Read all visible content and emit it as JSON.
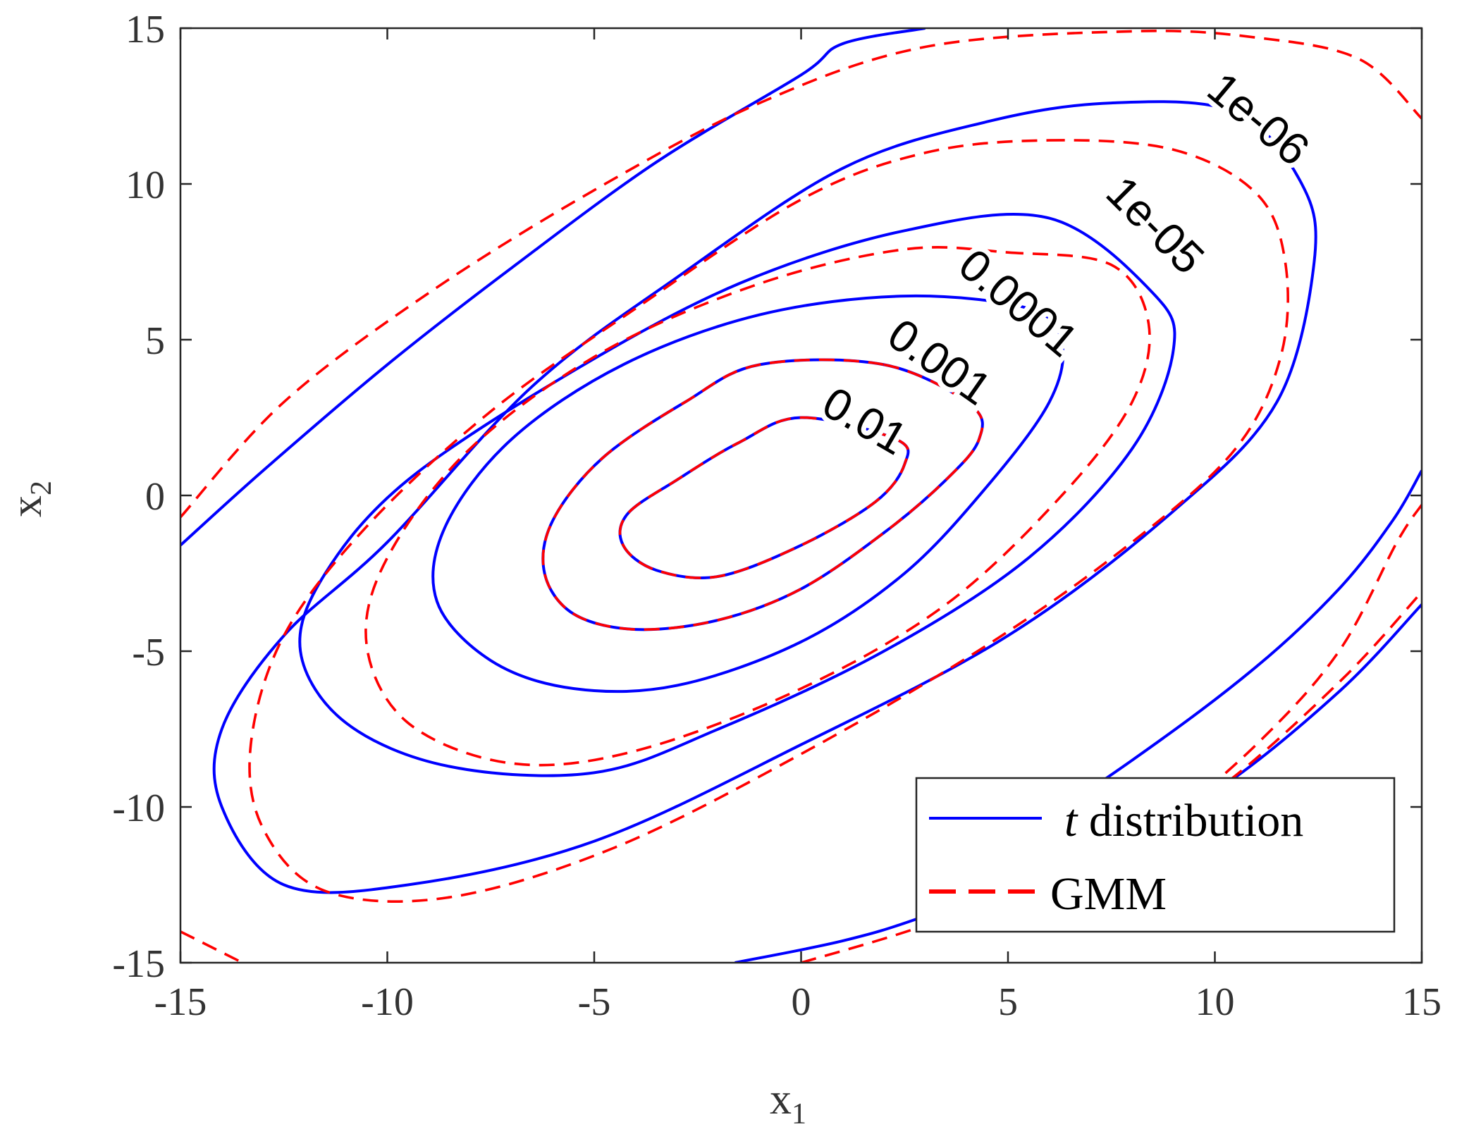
{
  "chart_data": {
    "type": "contour",
    "xlabel": "x",
    "xlabel_sub": "1",
    "ylabel": "x",
    "ylabel_sub": "2",
    "xlim": [
      -15,
      15
    ],
    "ylim": [
      -15,
      15
    ],
    "xticks": [
      "-15",
      "-10",
      "-5",
      "0",
      "5",
      "10",
      "15"
    ],
    "yticks": [
      "15",
      "10",
      "5",
      "0",
      "-5",
      "-10",
      "-15"
    ],
    "xtick_values": [
      -15,
      -10,
      -5,
      0,
      5,
      10,
      15
    ],
    "ytick_values": [
      15,
      10,
      5,
      0,
      -5,
      -10,
      -15
    ],
    "grid": false,
    "legend_position": "bottom-right",
    "levels": [
      "0.01",
      "0.001",
      "0.0001",
      "1e-05",
      "1e-06"
    ],
    "series": [
      {
        "name": "t distribution",
        "name_italic": "t",
        "name_rest": " distribution",
        "color": "#0000ff",
        "line_style": "solid",
        "contours": [
          {
            "level": "0.01",
            "points": [
              [
                0,
                2.5
              ],
              [
                2.3,
                1.8
              ],
              [
                2.5,
                1
              ],
              [
                1.8,
                -0.2
              ],
              [
                0,
                -1.6
              ],
              [
                -2,
                -2.6
              ],
              [
                -3.5,
                -2.4
              ],
              [
                -4.3,
                -1.6
              ],
              [
                -4.2,
                -0.6
              ],
              [
                -3,
                0.5
              ],
              [
                -1.5,
                1.7
              ],
              [
                0,
                2.5
              ]
            ]
          },
          {
            "level": "0.001",
            "points": [
              [
                2,
                4.2
              ],
              [
                4.1,
                2.9
              ],
              [
                4.3,
                1.8
              ],
              [
                3.5,
                0.5
              ],
              [
                2,
                -1.2
              ],
              [
                0,
                -3
              ],
              [
                -2,
                -4
              ],
              [
                -4,
                -4.3
              ],
              [
                -5.5,
                -3.8
              ],
              [
                -6.2,
                -2.5
              ],
              [
                -6,
                -0.8
              ],
              [
                -4.8,
                1.2
              ],
              [
                -2.8,
                3
              ],
              [
                -1,
                4.2
              ],
              [
                2,
                4.2
              ]
            ]
          },
          {
            "level": "0.0001",
            "points": [
              [
                5.5,
                6
              ],
              [
                6.3,
                4.9
              ],
              [
                6,
                3
              ],
              [
                4.5,
                0.3
              ],
              [
                2.5,
                -2.5
              ],
              [
                0,
                -4.7
              ],
              [
                -3,
                -6.1
              ],
              [
                -5.5,
                -6.2
              ],
              [
                -7.5,
                -5.3
              ],
              [
                -8.8,
                -3.4
              ],
              [
                -8.6,
                -1
              ],
              [
                -7,
                1.8
              ],
              [
                -4.3,
                4.2
              ],
              [
                -1,
                5.8
              ],
              [
                2.5,
                6.4
              ],
              [
                5.5,
                6
              ]
            ]
          },
          {
            "level": "1e-05",
            "points": [
              [
                6,
                8.9
              ],
              [
                8.5,
                6.5
              ],
              [
                9,
                4.7
              ],
              [
                8,
                1.5
              ],
              [
                5.5,
                -2
              ],
              [
                2,
                -5
              ],
              [
                -2,
                -7.5
              ],
              [
                -5,
                -8.9
              ],
              [
                -8.5,
                -8.7
              ],
              [
                -11,
                -7.3
              ],
              [
                -12.1,
                -5
              ],
              [
                -11.5,
                -2.5
              ],
              [
                -9.5,
                0.5
              ],
              [
                -5.5,
                4
              ],
              [
                -1.5,
                6.8
              ],
              [
                2.5,
                8.5
              ],
              [
                6,
                8.9
              ]
            ]
          },
          {
            "level": "1e-06",
            "points": [
              [
                7.5,
                12.6
              ],
              [
                10.5,
                12.3
              ],
              [
                12.1,
                10
              ],
              [
                12.4,
                7.5
              ],
              [
                11.5,
                3
              ],
              [
                9,
                -0.5
              ],
              [
                5,
                -4.5
              ],
              [
                0,
                -8
              ],
              [
                -5,
                -11.1
              ],
              [
                -9.5,
                -12.5
              ],
              [
                -12.5,
                -12.5
              ],
              [
                -14,
                -10
              ],
              [
                -14,
                -7.5
              ],
              [
                -12.5,
                -4.5
              ],
              [
                -10,
                -1.5
              ],
              [
                -6.5,
                3.5
              ],
              [
                -3,
                7
              ],
              [
                1,
                10.5
              ],
              [
                4.5,
                12
              ],
              [
                7.5,
                12.6
              ]
            ]
          },
          {
            "level": "outer",
            "points": [
              [
                -15,
                -1.6
              ],
              [
                -13,
                0.8
              ],
              [
                -10,
                4.2
              ],
              [
                -7,
                7.3
              ],
              [
                -3.5,
                10.7
              ],
              [
                0,
                13.5
              ],
              [
                1,
                14.5
              ],
              [
                3,
                15
              ]
            ]
          },
          {
            "level": "outer",
            "points": [
              [
                -1.6,
                -15
              ],
              [
                1,
                -14.3
              ],
              [
                3,
                -13.5
              ],
              [
                7,
                -11.5
              ],
              [
                10,
                -9.5
              ],
              [
                13,
                -6.3
              ],
              [
                15,
                -3.5
              ]
            ]
          },
          {
            "level": "outer",
            "points": [
              [
                3,
                -13
              ],
              [
                8,
                -8.5
              ],
              [
                11,
                -5.5
              ],
              [
                13,
                -3
              ],
              [
                14.3,
                -0.8
              ],
              [
                15,
                0.8
              ]
            ]
          }
        ]
      },
      {
        "name": "GMM",
        "color": "#ff0000",
        "line_style": "dashed",
        "contours": [
          {
            "level": "0.01",
            "points": [
              [
                0,
                2.5
              ],
              [
                2.3,
                1.8
              ],
              [
                2.5,
                1
              ],
              [
                1.8,
                -0.2
              ],
              [
                0,
                -1.6
              ],
              [
                -2,
                -2.6
              ],
              [
                -3.5,
                -2.4
              ],
              [
                -4.3,
                -1.6
              ],
              [
                -4.2,
                -0.6
              ],
              [
                -3,
                0.5
              ],
              [
                -1.5,
                1.7
              ],
              [
                0,
                2.5
              ]
            ]
          },
          {
            "level": "0.001",
            "points": [
              [
                2,
                4.2
              ],
              [
                4.1,
                2.9
              ],
              [
                4.3,
                1.8
              ],
              [
                3.5,
                0.5
              ],
              [
                2,
                -1.2
              ],
              [
                0,
                -3
              ],
              [
                -2,
                -4
              ],
              [
                -4,
                -4.3
              ],
              [
                -5.5,
                -3.8
              ],
              [
                -6.2,
                -2.5
              ],
              [
                -6,
                -0.8
              ],
              [
                -4.8,
                1.2
              ],
              [
                -2.8,
                3
              ],
              [
                -1,
                4.2
              ],
              [
                2,
                4.2
              ]
            ]
          },
          {
            "level": "0.0001",
            "points": [
              [
                5,
                7.8
              ],
              [
                7.5,
                7.4
              ],
              [
                8.4,
                5.5
              ],
              [
                8,
                3
              ],
              [
                6.3,
                0
              ],
              [
                3.5,
                -3.5
              ],
              [
                0,
                -6.2
              ],
              [
                -4,
                -8.2
              ],
              [
                -7,
                -8.6
              ],
              [
                -9.5,
                -7.3
              ],
              [
                -10.5,
                -4.8
              ],
              [
                -10,
                -2
              ],
              [
                -8,
                1.5
              ],
              [
                -4.8,
                4.6
              ],
              [
                -1,
                6.8
              ],
              [
                2.5,
                7.9
              ],
              [
                5,
                7.8
              ]
            ]
          },
          {
            "level": "1e-05",
            "points": [
              [
                6,
                11.4
              ],
              [
                9,
                11.1
              ],
              [
                11,
                9.7
              ],
              [
                11.7,
                7.5
              ],
              [
                11.6,
                4.5
              ],
              [
                10.5,
                1.5
              ],
              [
                8,
                -1.5
              ],
              [
                4.5,
                -4.8
              ],
              [
                0,
                -8.3
              ],
              [
                -4.5,
                -11.3
              ],
              [
                -8.5,
                -12.9
              ],
              [
                -11.5,
                -12.7
              ],
              [
                -13,
                -10.7
              ],
              [
                -13.3,
                -8
              ],
              [
                -12.5,
                -4.5
              ],
              [
                -10.5,
                -1
              ],
              [
                -7.5,
                2.7
              ],
              [
                -4,
                6
              ],
              [
                0,
                9.5
              ],
              [
                3,
                11
              ],
              [
                6,
                11.4
              ]
            ]
          },
          {
            "level": "1e-06",
            "points": [
              [
                -15,
                -0.7
              ],
              [
                -12.5,
                3
              ],
              [
                -9,
                6.5
              ],
              [
                -5,
                9.8
              ],
              [
                -1,
                12.6
              ],
              [
                3,
                14.4
              ],
              [
                8,
                14.9
              ],
              [
                11,
                14.7
              ],
              [
                13.5,
                14
              ],
              [
                15,
                12.1
              ]
            ]
          },
          {
            "level": "outer",
            "points": [
              [
                -15,
                -14
              ],
              [
                -13.5,
                -15
              ]
            ]
          },
          {
            "level": "outer",
            "points": [
              [
                0,
                -15
              ],
              [
                3,
                -13.8
              ],
              [
                7,
                -11.8
              ],
              [
                10,
                -9.5
              ],
              [
                13,
                -6
              ],
              [
                15,
                -3.1
              ]
            ]
          },
          {
            "level": "outer",
            "points": [
              [
                8,
                -11.5
              ],
              [
                11,
                -8
              ],
              [
                13,
                -5
              ],
              [
                14.4,
                -1.5
              ],
              [
                15,
                -0.3
              ]
            ]
          }
        ]
      }
    ],
    "contour_labels": [
      {
        "text": "0.01",
        "x": 1.5,
        "y": 2.3,
        "angle": 30
      },
      {
        "text": "0.001",
        "x": 3.3,
        "y": 4.2,
        "angle": 35
      },
      {
        "text": "0.0001",
        "x": 5.2,
        "y": 6.1,
        "angle": 40
      },
      {
        "text": "1e-05",
        "x": 8.5,
        "y": 8.6,
        "angle": 45
      },
      {
        "text": "1e-06",
        "x": 11.0,
        "y": 12.0,
        "angle": 40
      }
    ]
  }
}
